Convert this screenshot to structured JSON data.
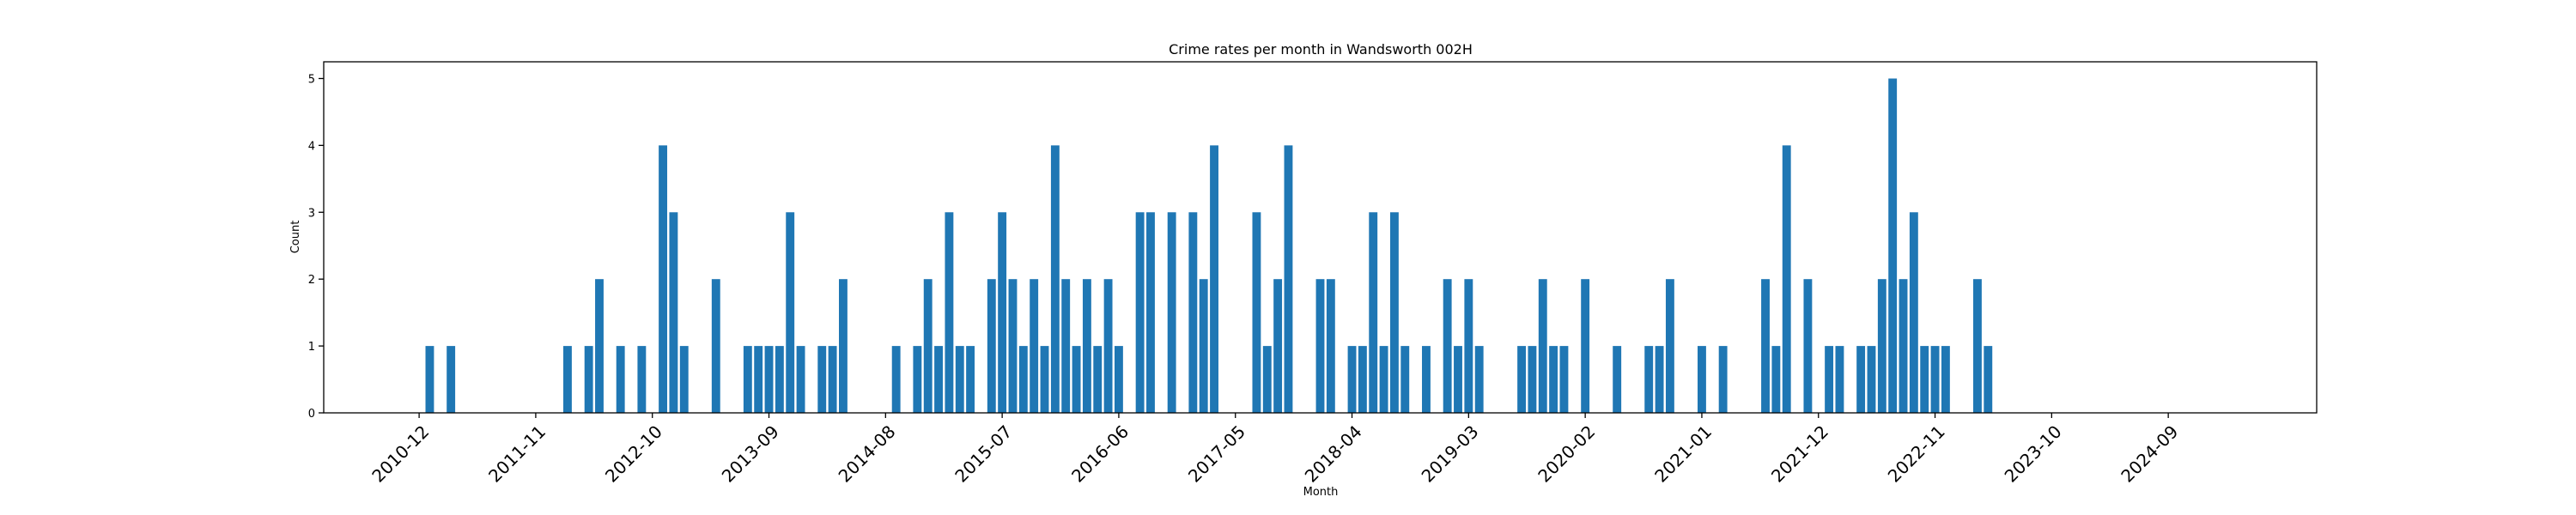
{
  "chart_data": {
    "type": "bar",
    "title": "Crime rates per month in Wandsworth 002H",
    "xlabel": "Month",
    "ylabel": "Count",
    "ylim": [
      0,
      5.25
    ],
    "yticks": [
      0,
      1,
      2,
      3,
      4,
      5
    ],
    "xlim": [
      "2010-03",
      "2025-11"
    ],
    "xtick_labels": [
      "2010-12",
      "2011-11",
      "2012-10",
      "2013-09",
      "2014-08",
      "2015-07",
      "2016-06",
      "2017-05",
      "2018-04",
      "2019-03",
      "2020-02",
      "2021-01",
      "2021-12",
      "2022-11",
      "2023-10",
      "2024-09"
    ],
    "bar_color": "#1f77b4",
    "grid": false,
    "legend": "none",
    "months": [
      "2011-01",
      "2011-03",
      "2012-02",
      "2012-04",
      "2012-05",
      "2012-07",
      "2012-09",
      "2012-11",
      "2012-12",
      "2013-01",
      "2013-04",
      "2013-07",
      "2013-08",
      "2013-09",
      "2013-10",
      "2013-11",
      "2013-12",
      "2014-02",
      "2014-03",
      "2014-04",
      "2014-09",
      "2014-11",
      "2014-12",
      "2015-01",
      "2015-02",
      "2015-03",
      "2015-04",
      "2015-06",
      "2015-07",
      "2015-08",
      "2015-09",
      "2015-10",
      "2015-11",
      "2015-12",
      "2016-01",
      "2016-02",
      "2016-03",
      "2016-04",
      "2016-05",
      "2016-06",
      "2016-08",
      "2016-09",
      "2016-11",
      "2017-01",
      "2017-02",
      "2017-03",
      "2017-07",
      "2017-08",
      "2017-09",
      "2017-10",
      "2018-01",
      "2018-02",
      "2018-04",
      "2018-05",
      "2018-06",
      "2018-07",
      "2018-08",
      "2018-09",
      "2018-11",
      "2019-01",
      "2019-02",
      "2019-03",
      "2019-04",
      "2019-08",
      "2019-09",
      "2019-10",
      "2019-11",
      "2019-12",
      "2020-02",
      "2020-05",
      "2020-08",
      "2020-09",
      "2020-10",
      "2021-01",
      "2021-03",
      "2021-07",
      "2021-08",
      "2021-09",
      "2021-11",
      "2022-01",
      "2022-02",
      "2022-04",
      "2022-05",
      "2022-06",
      "2022-07",
      "2022-08",
      "2022-09",
      "2022-10",
      "2022-11",
      "2022-12",
      "2023-03",
      "2023-04"
    ],
    "values": [
      1,
      1,
      1,
      1,
      2,
      1,
      1,
      4,
      3,
      1,
      2,
      1,
      1,
      1,
      1,
      3,
      1,
      1,
      1,
      2,
      1,
      1,
      2,
      1,
      3,
      1,
      1,
      2,
      3,
      2,
      1,
      2,
      1,
      4,
      2,
      1,
      2,
      1,
      2,
      1,
      3,
      3,
      3,
      3,
      2,
      4,
      3,
      1,
      2,
      4,
      2,
      2,
      1,
      1,
      3,
      1,
      3,
      1,
      1,
      2,
      1,
      2,
      1,
      1,
      1,
      2,
      1,
      1,
      2,
      1,
      1,
      1,
      2,
      1,
      1,
      2,
      1,
      4,
      2,
      1,
      1,
      1,
      1,
      2,
      5,
      2,
      3,
      1,
      1,
      1,
      2,
      1
    ]
  }
}
